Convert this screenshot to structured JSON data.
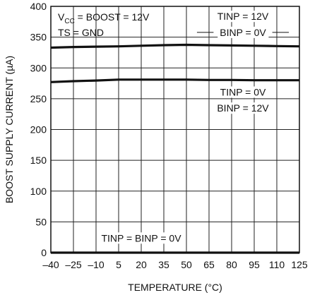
{
  "chart_data": {
    "type": "line",
    "xlabel": "TEMPERATURE (°C)",
    "ylabel": "BOOST SUPPLY CURRENT (µA)",
    "xlim": [
      -40,
      125
    ],
    "ylim": [
      0,
      400
    ],
    "grid": true,
    "x_ticks": [
      -40,
      -25,
      -10,
      5,
      20,
      35,
      50,
      65,
      80,
      95,
      110,
      125
    ],
    "x_tick_labels": [
      "–40",
      "–25",
      "–10",
      "5",
      "20",
      "35",
      "50",
      "65",
      "80",
      "95",
      "110",
      "125"
    ],
    "y_ticks": [
      0,
      50,
      100,
      150,
      200,
      250,
      300,
      350,
      400
    ],
    "y_tick_labels": [
      "0",
      "50",
      "100",
      "150",
      "200",
      "250",
      "300",
      "350",
      "400"
    ],
    "conditions": {
      "vcc_prefix": "V",
      "vcc_sub": "CC",
      "vcc_rest": " = BOOST = 12V",
      "ts": "TS = GND"
    },
    "series": [
      {
        "name": "TINP = 12V, BINP = 0V",
        "label_lines": [
          "TINP = 12V",
          "BINP = 0V"
        ],
        "x": [
          -40,
          -25,
          -10,
          5,
          20,
          35,
          50,
          65,
          80,
          95,
          110,
          125
        ],
        "y": [
          333,
          334,
          334.5,
          335,
          336,
          337,
          337.5,
          337,
          336.5,
          336,
          335.5,
          335
        ]
      },
      {
        "name": "TINP = 0V, BINP = 12V",
        "label_lines": [
          "TINP = 0V",
          "BINP = 12V"
        ],
        "x": [
          -40,
          -25,
          -10,
          5,
          20,
          35,
          50,
          65,
          80,
          95,
          110,
          125
        ],
        "y": [
          277,
          278.5,
          279.5,
          281,
          281,
          281,
          281,
          280.5,
          280.5,
          280,
          280,
          280
        ]
      },
      {
        "name": "TINP = BINP = 0V",
        "label_lines": [
          "TINP = BINP = 0V"
        ],
        "x": [
          -40,
          -25,
          -10,
          5,
          20,
          35,
          50,
          65,
          80,
          95,
          110,
          125
        ],
        "y": [
          0,
          0,
          0,
          0,
          0,
          0,
          0,
          0,
          0,
          0,
          0,
          0
        ]
      }
    ]
  }
}
